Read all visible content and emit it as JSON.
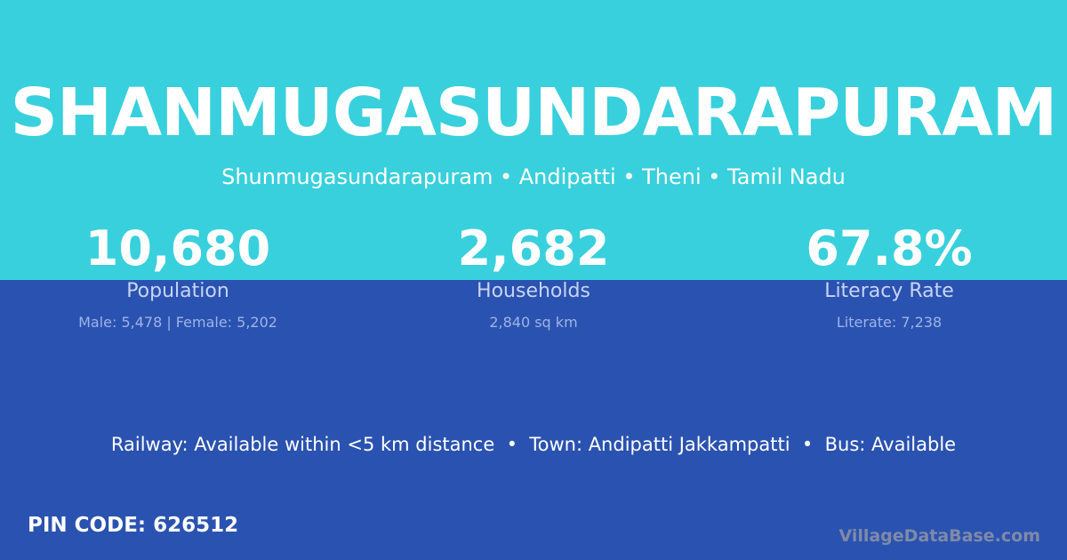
{
  "header": {
    "title": "SHANMUGASUNDARAPURAM",
    "subtitle": "Shunmugasundarapuram • Andipatti • Theni • Tamil Nadu"
  },
  "stats": [
    {
      "value": "10,680",
      "label": "Population",
      "detail": "Male: 5,478 | Female: 5,202"
    },
    {
      "value": "2,682",
      "label": "Households",
      "detail": "2,840 sq km"
    },
    {
      "value": "67.8%",
      "label": "Literacy Rate",
      "detail": "Literate: 7,238"
    }
  ],
  "facilities": "Railway: Available within <5 km distance  •  Town: Andipatti Jakkampatti  •  Bus: Available",
  "pin_code": "PIN CODE: 626512",
  "brand": "VillageDataBase.com",
  "colors": {
    "top": "#38d0dc",
    "bottom": "#2a52b0"
  }
}
